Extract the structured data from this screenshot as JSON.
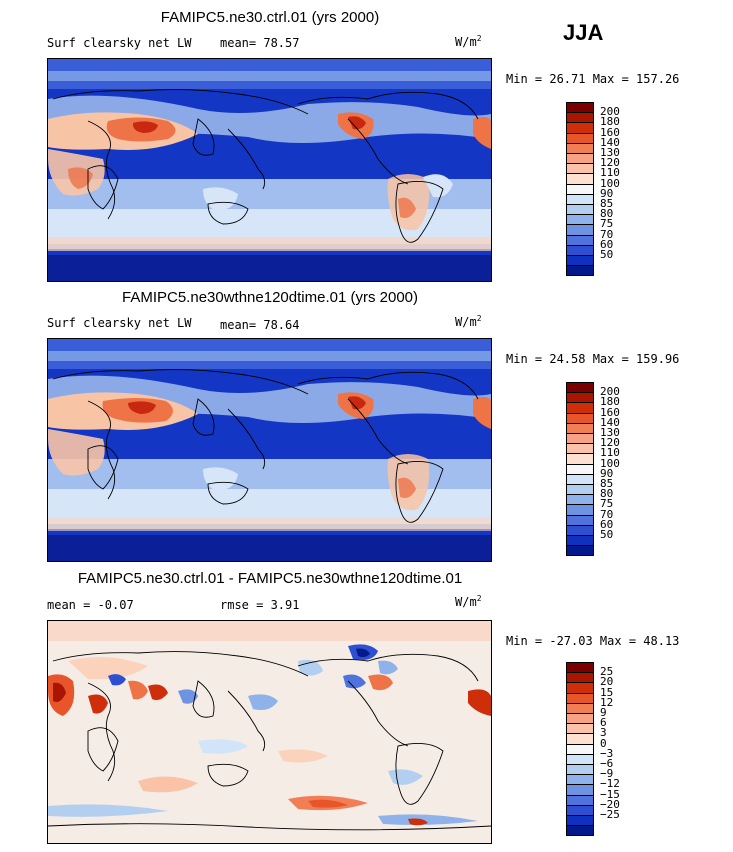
{
  "season": "JJA",
  "panels": [
    {
      "title": "FAMIPC5.ne30.ctrl.01 (yrs 2000)",
      "field": "Surf clearsky net LW",
      "stat1": "mean=  78.57",
      "stat2": "",
      "units": "W/m",
      "units_sup": "2",
      "minmax": "Min =  26.71 Max = 157.26",
      "kind": "abs"
    },
    {
      "title": "FAMIPC5.ne30wthne120dtime.01 (yrs 2000)",
      "field": "Surf clearsky net LW",
      "stat1": "mean=  78.64",
      "stat2": "",
      "units": "W/m",
      "units_sup": "2",
      "minmax": "Min =  24.58 Max = 159.96",
      "kind": "abs"
    },
    {
      "title": "FAMIPC5.ne30.ctrl.01 - FAMIPC5.ne30wthne120dtime.01",
      "field": "",
      "stat1": "mean =  -0.07",
      "stat2": "rmse =    3.91",
      "units": "W/m",
      "units_sup": "2",
      "minmax": "Min = -27.03 Max =  48.13",
      "kind": "diff"
    }
  ],
  "colorbars": {
    "abs": {
      "colors": [
        "#7a0000",
        "#a81500",
        "#cf2e0a",
        "#e8552a",
        "#f27e56",
        "#f7a283",
        "#fac3a8",
        "#fde0cf",
        "#f7f7f7",
        "#d2e4f7",
        "#b3cff0",
        "#8fb2ea",
        "#6f93e3",
        "#4f72dc",
        "#2e4fd0",
        "#1030bf",
        "#031a8c"
      ],
      "labels": [
        "200",
        "180",
        "160",
        "140",
        "130",
        "120",
        "110",
        "100",
        "90",
        "85",
        "80",
        "75",
        "70",
        "60",
        "50"
      ]
    },
    "diff": {
      "colors": [
        "#7a0000",
        "#a81500",
        "#cf2e0a",
        "#e8552a",
        "#f27e56",
        "#f7a283",
        "#fac3a8",
        "#fde0cf",
        "#f7f7f7",
        "#d2e4f7",
        "#b3cff0",
        "#8fb2ea",
        "#6f93e3",
        "#4f72dc",
        "#2e4fd0",
        "#1030bf",
        "#031a8c"
      ],
      "labels": [
        "25",
        "20",
        "15",
        "12",
        "9",
        "6",
        "3",
        "0",
        "−3",
        "−6",
        "−9",
        "−12",
        "−15",
        "−20",
        "−25"
      ]
    }
  },
  "colors": {
    "deep_blue": "#0a2ab0",
    "mid_blue": "#3f63d6",
    "light_blue": "#a9c6f0",
    "pale_blue": "#d6e5f8",
    "peach": "#f8c4a6",
    "orange": "#ee7448",
    "red": "#c82810",
    "diff_bg": "#f6ece6"
  }
}
